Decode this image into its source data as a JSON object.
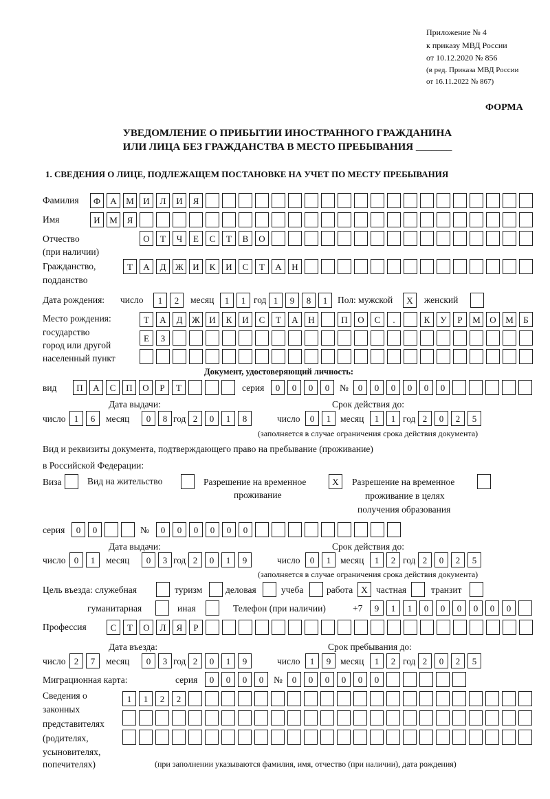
{
  "header": {
    "line1": "Приложение № 4",
    "line2": "к приказу МВД России",
    "line3": "от 10.12.2020 № 856",
    "line4": "(в ред. Приказа МВД России",
    "line5": "от 16.11.2022 № 867)",
    "form": "ФОРМА",
    "title1": "УВЕДОМЛЕНИЕ О ПРИБЫТИИ ИНОСТРАННОГО ГРАЖДАНИНА",
    "title2": "ИЛИ ЛИЦА БЕЗ ГРАЖДАНСТВА В МЕСТО ПРЕБЫВАНИЯ _______",
    "section1": "1. СВЕДЕНИЯ О ЛИЦЕ, ПОДЛЕЖАЩЕМ ПОСТАНОВКЕ НА УЧЕТ ПО МЕСТУ ПРЕБЫВАНИЯ"
  },
  "labels": {
    "surname": "Фамилия",
    "name": "Имя",
    "patronymic1": "Отчество",
    "patronymic2": "(при наличии)",
    "citizenship1": "Гражданство,",
    "citizenship2": "подданство",
    "birth_date": "Дата рождения:",
    "day": "число",
    "month": "месяц",
    "year": "год",
    "sex_male": "Пол: мужской",
    "sex_female": "женский",
    "birthplace1": "Место рождения:",
    "birthplace2": "государство",
    "birthplace3": "город или другой",
    "birthplace4": "населенный пункт",
    "id_doc": "Документ, удостоверяющий личность:",
    "kind": "вид",
    "series": "серия",
    "number": "№",
    "issue_date": "Дата выдачи:",
    "valid_until": "Срок действия до:",
    "validity_note": "(заполняется в случае ограничения срока действия документа)",
    "stay_doc1": "Вид и реквизиты документа, подтверждающего право на пребывание (проживание)",
    "stay_doc2": "в Российской Федерации:",
    "visa": "Виза",
    "residence": "Вид на жительство",
    "trp1": "Разрешение на временное",
    "trp2": "проживание",
    "trp_edu1": "Разрешение на временное",
    "trp_edu2": "проживание в целях",
    "trp_edu3": "получения образования",
    "purpose": "Цель въезда: служебная",
    "tourism": "туризм",
    "business": "деловая",
    "study": "учеба",
    "work": "работа",
    "private": "частная",
    "transit": "транзит",
    "humanitarian": "гуманитарная",
    "other": "иная",
    "phone": "Телефон (при наличии)",
    "phone_prefix": "+7",
    "profession": "Профессия",
    "entry_date": "Дата въезда:",
    "stay_until": "Срок пребывания до:",
    "migration_card": "Миграционная карта:",
    "reps1": "Сведения о",
    "reps2": "законных",
    "reps3": "представителях",
    "reps4": "(родителях,",
    "reps5": "усыновителях,",
    "reps6": "попечителях)",
    "reps_note": "(при заполнении указываются фамилия, имя, отчество (при наличии), дата рождения)"
  },
  "values": {
    "surname": "ФАМИЛИЯ",
    "name": "ИМЯ",
    "patronymic": "ОТЧЕСТВО",
    "citizenship": "ТАДЖИКИСТАН",
    "birth_day": "12",
    "birth_month": "11",
    "birth_year": "1981",
    "sex_male": "X",
    "sex_female": "",
    "birthplace_row1": "ТАДЖИКИСТАН ПОС. КУРМОМБ",
    "birthplace_row2": "ЕЗ",
    "birthplace_row3": "",
    "id_kind": "ПАСПОРТ",
    "id_series": "0000",
    "id_number": "000000",
    "id_issue_day": "16",
    "id_issue_month": "08",
    "id_issue_year": "2018",
    "id_valid_day": "01",
    "id_valid_month": "11",
    "id_valid_year": "2025",
    "visa": "",
    "residence": "",
    "trp": "X",
    "trp_edu": "",
    "stay_series": "00",
    "stay_number": "000000",
    "stay_issue_day": "01",
    "stay_issue_month": "03",
    "stay_issue_year": "2019",
    "stay_valid_day": "01",
    "stay_valid_month": "12",
    "stay_valid_year": "2025",
    "purpose_official": "",
    "purpose_tourism": "",
    "purpose_business": "",
    "purpose_study": "",
    "purpose_work": "X",
    "purpose_private": "",
    "purpose_transit": "",
    "purpose_humanitarian": "",
    "purpose_other": "",
    "phone": "911000000",
    "profession": "СТОЛЯР",
    "entry_day": "27",
    "entry_month": "03",
    "entry_year": "2019",
    "stay_day": "19",
    "stay_month": "12",
    "stay_year": "2025",
    "mc_series": "0000",
    "mc_number": "000000",
    "reps_row1": "1122",
    "reps_row2": "",
    "reps_row3": ""
  }
}
